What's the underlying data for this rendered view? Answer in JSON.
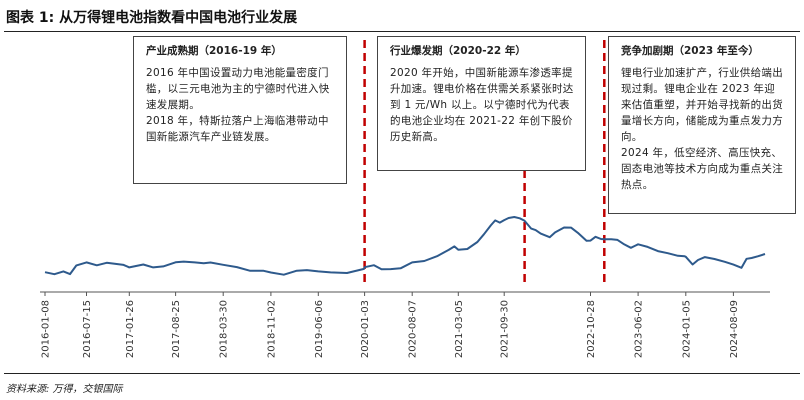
{
  "header": {
    "title": "图表 1: 从万得锂电池指数看中国电池行业发展",
    "source": "资料来源: 万得，交银国际"
  },
  "notes": [
    {
      "title": "产业成熟期（2016-19 年）",
      "lines": [
        "2016 年中国设置动力电池能量密度门槛，以三元电池为主的宁德时代进入快速发展期。",
        "2018 年，特斯拉落户上海临港带动中国新能源汽车产业链发展。"
      ]
    },
    {
      "title": "行业爆发期（2020-22 年）",
      "lines": [
        "2020 年开始，中国新能源车渗透率提升加速。锂电价格在供需关系紧张时达到 1 元/Wh 以上。以宁德时代为代表的电池企业均在 2021-22 年创下股价历史新高。"
      ]
    },
    {
      "title": "竞争加剧期（2023 年至今）",
      "lines": [
        "锂电行业加速扩产，行业供给端出现过剩。锂电企业在 2023 年迎来估值重塑，并开始寻找新的出货量增长方向，储能成为重点发力方向。",
        "2024 年，低空经济、高压快充、固态电池等技术方向成为重点关注热点。"
      ]
    }
  ],
  "colors": {
    "line": "#2e5a8c",
    "divider": "#c00000",
    "axis": "#555555"
  },
  "chart_data": {
    "type": "line",
    "title": "",
    "xlabel": "",
    "ylabel": "",
    "y_axis_shown": false,
    "grid": false,
    "x_range": [
      "2016-01-08",
      "2024-12-31"
    ],
    "x_ticks": [
      "2016-01-08",
      "2016-07-15",
      "2017-01-26",
      "2017-08-25",
      "2018-03-30",
      "2018-11-02",
      "2019-06-06",
      "2020-01-03",
      "2020-08-07",
      "2021-03-05",
      "2021-09-30",
      "2022-10-28",
      "2023-06-02",
      "2024-01-05",
      "2024-08-09"
    ],
    "phase_dividers": [
      "2020-01-03",
      "2022-01-01",
      "2022-12-30"
    ],
    "series": [
      {
        "values_relative": [
          [
            "2016-01-08",
            0.14
          ],
          [
            "2016-02-20",
            0.12
          ],
          [
            "2016-04-01",
            0.14
          ],
          [
            "2016-05-01",
            0.12
          ],
          [
            "2016-05-30",
            0.24
          ],
          [
            "2016-07-15",
            0.27
          ],
          [
            "2016-08-31",
            0.25
          ],
          [
            "2016-10-15",
            0.27
          ],
          [
            "2016-12-31",
            0.24
          ],
          [
            "2017-01-26",
            0.22
          ],
          [
            "2017-03-31",
            0.24
          ],
          [
            "2017-05-15",
            0.21
          ],
          [
            "2017-06-30",
            0.23
          ],
          [
            "2017-08-25",
            0.27
          ],
          [
            "2017-10-01",
            0.3
          ],
          [
            "2017-11-20",
            0.28
          ],
          [
            "2017-12-31",
            0.26
          ],
          [
            "2018-01-31",
            0.29
          ],
          [
            "2018-03-30",
            0.24
          ],
          [
            "2018-05-31",
            0.21
          ],
          [
            "2018-07-31",
            0.17
          ],
          [
            "2018-09-30",
            0.15
          ],
          [
            "2018-11-02",
            0.14
          ],
          [
            "2018-12-31",
            0.11
          ],
          [
            "2019-02-28",
            0.15
          ],
          [
            "2019-04-15",
            0.18
          ],
          [
            "2019-06-06",
            0.15
          ],
          [
            "2019-08-01",
            0.13
          ],
          [
            "2019-10-15",
            0.14
          ],
          [
            "2019-12-31",
            0.18
          ],
          [
            "2020-01-03",
            0.21
          ],
          [
            "2020-02-15",
            0.25
          ],
          [
            "2020-03-20",
            0.17
          ],
          [
            "2020-05-01",
            0.19
          ],
          [
            "2020-06-15",
            0.2
          ],
          [
            "2020-08-07",
            0.27
          ],
          [
            "2020-10-01",
            0.31
          ],
          [
            "2020-12-01",
            0.37
          ],
          [
            "2020-12-31",
            0.42
          ],
          [
            "2021-01-20",
            0.47
          ],
          [
            "2021-02-15",
            0.5
          ],
          [
            "2021-03-05",
            0.46
          ],
          [
            "2021-04-15",
            0.48
          ],
          [
            "2021-05-31",
            0.56
          ],
          [
            "2021-06-30",
            0.69
          ],
          [
            "2021-07-31",
            0.81
          ],
          [
            "2021-08-20",
            0.87
          ],
          [
            "2021-09-10",
            0.86
          ],
          [
            "2021-09-30",
            0.88
          ],
          [
            "2021-10-20",
            0.91
          ],
          [
            "2021-11-15",
            0.94
          ],
          [
            "2021-12-10",
            0.9
          ],
          [
            "2021-12-31",
            0.88
          ],
          [
            "2022-01-31",
            0.77
          ],
          [
            "2022-02-20",
            0.73
          ],
          [
            "2022-03-15",
            0.7
          ],
          [
            "2022-04-25",
            0.64
          ],
          [
            "2022-05-20",
            0.7
          ],
          [
            "2022-06-30",
            0.79
          ],
          [
            "2022-07-31",
            0.77
          ],
          [
            "2022-08-31",
            0.7
          ],
          [
            "2022-10-10",
            0.6
          ],
          [
            "2022-10-28",
            0.58
          ],
          [
            "2022-11-20",
            0.65
          ],
          [
            "2022-12-15",
            0.62
          ],
          [
            "2022-12-31",
            0.6
          ],
          [
            "2023-01-31",
            0.62
          ],
          [
            "2023-02-28",
            0.6
          ],
          [
            "2023-03-31",
            0.53
          ],
          [
            "2023-04-30",
            0.5
          ],
          [
            "2023-06-02",
            0.53
          ],
          [
            "2023-07-15",
            0.5
          ],
          [
            "2023-08-31",
            0.45
          ],
          [
            "2023-10-15",
            0.4
          ],
          [
            "2023-11-30",
            0.38
          ],
          [
            "2023-12-31",
            0.37
          ],
          [
            "2024-01-05",
            0.35
          ],
          [
            "2024-02-05",
            0.26
          ],
          [
            "2024-03-01",
            0.31
          ],
          [
            "2024-04-01",
            0.35
          ],
          [
            "2024-05-15",
            0.34
          ],
          [
            "2024-07-01",
            0.28
          ],
          [
            "2024-08-09",
            0.25
          ],
          [
            "2024-09-15",
            0.21
          ],
          [
            "2024-10-08",
            0.32
          ],
          [
            "2024-10-31",
            0.35
          ],
          [
            "2024-11-30",
            0.37
          ],
          [
            "2024-12-31",
            0.4
          ]
        ]
      }
    ]
  }
}
